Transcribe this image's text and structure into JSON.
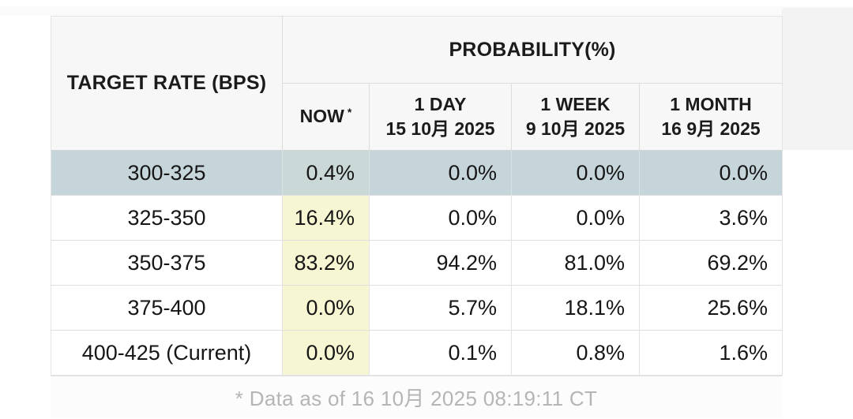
{
  "table": {
    "target_rate_header": "TARGET RATE (BPS)",
    "probability_header": "PROBABILITY(%)",
    "now_label": "NOW",
    "now_asterisk": "*",
    "columns": [
      {
        "label": "1 DAY",
        "date": "15 10月 2025"
      },
      {
        "label": "1 WEEK",
        "date": "9 10月 2025"
      },
      {
        "label": "1 MONTH",
        "date": "16 9月 2025"
      }
    ],
    "rows": [
      {
        "range": "300-325",
        "values": [
          "0.4%",
          "0.0%",
          "0.0%",
          "0.0%"
        ]
      },
      {
        "range": "325-350",
        "values": [
          "16.4%",
          "0.0%",
          "0.0%",
          "3.6%"
        ]
      },
      {
        "range": "350-375",
        "values": [
          "83.2%",
          "94.2%",
          "81.0%",
          "69.2%"
        ]
      },
      {
        "range": "375-400",
        "values": [
          "0.0%",
          "5.7%",
          "18.1%",
          "25.6%"
        ]
      },
      {
        "range": "400-425 (Current)",
        "values": [
          "0.0%",
          "0.1%",
          "0.8%",
          "1.6%"
        ]
      }
    ],
    "footnote": "* Data as of 16 10月 2025 08:19:11 CT"
  },
  "colors": {
    "highlight_row": "#c6d5da",
    "now_column_highlight": "#f6f6d2",
    "header_background": "#f7f7f7",
    "footnote_text": "#b5b5b5"
  }
}
